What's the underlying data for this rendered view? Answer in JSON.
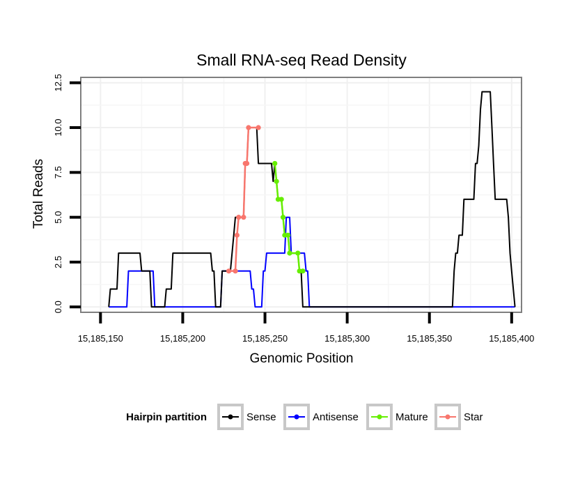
{
  "chart_data": {
    "type": "line",
    "title": "Small RNA-seq Read Density",
    "xlabel": "Genomic Position",
    "ylabel": "Total Reads",
    "xlim": [
      15185138,
      15185406
    ],
    "ylim": [
      -0.3,
      12.8
    ],
    "x_ticks": [
      15185150,
      15185200,
      15185250,
      15185300,
      15185350,
      15185400
    ],
    "x_tick_labels": [
      "15,185,150",
      "15,185,200",
      "15,185,250",
      "15,185,300",
      "15,185,350",
      "15,185,400"
    ],
    "y_ticks": [
      0,
      2.5,
      5,
      7.5,
      10,
      12.5
    ],
    "y_tick_labels": [
      "0.0",
      "2.5",
      "5.0",
      "7.5",
      "10.0",
      "12.5"
    ],
    "grid": true,
    "legend": {
      "title": "Hairpin partition",
      "position": "bottom",
      "entries": [
        "Sense",
        "Antisense",
        "Mature",
        "Star"
      ]
    },
    "colors": {
      "Sense": "#000000",
      "Antisense": "#0000ff",
      "Mature": "#66ee00",
      "Star": "#f8766d"
    },
    "series": [
      {
        "name": "Sense",
        "points": [
          [
            15185155,
            0
          ],
          [
            15185156,
            1
          ],
          [
            15185160,
            1
          ],
          [
            15185161,
            3
          ],
          [
            15185174,
            3
          ],
          [
            15185175,
            2
          ],
          [
            15185180,
            2
          ],
          [
            15185181,
            0
          ],
          [
            15185189,
            0
          ],
          [
            15185190,
            1
          ],
          [
            15185193,
            1
          ],
          [
            15185194,
            3
          ],
          [
            15185217,
            3
          ],
          [
            15185218,
            2
          ],
          [
            15185219,
            2
          ],
          [
            15185220,
            0
          ],
          [
            15185223,
            0
          ],
          [
            15185224,
            2
          ],
          [
            15185229,
            2
          ],
          [
            15185231,
            4
          ],
          [
            15185232,
            5
          ],
          [
            15185237,
            5
          ],
          [
            15185238,
            8
          ],
          [
            15185239,
            8
          ],
          [
            15185240,
            10
          ],
          [
            15185245,
            10
          ],
          [
            15185246,
            8
          ],
          [
            15185254,
            8
          ],
          [
            15185255,
            7
          ],
          [
            15185256,
            8
          ],
          [
            15185257,
            7
          ],
          [
            15185258,
            6
          ],
          [
            15185260,
            6
          ],
          [
            15185261,
            5
          ],
          [
            15185262,
            4
          ],
          [
            15185264,
            4
          ],
          [
            15185265,
            3
          ],
          [
            15185270,
            3
          ],
          [
            15185271,
            2
          ],
          [
            15185272,
            2
          ],
          [
            15185273,
            0
          ],
          [
            15185364,
            0
          ],
          [
            15185365,
            2
          ],
          [
            15185366,
            3
          ],
          [
            15185367,
            3
          ],
          [
            15185368,
            4
          ],
          [
            15185370,
            4
          ],
          [
            15185371,
            6
          ],
          [
            15185377,
            6
          ],
          [
            15185378,
            8
          ],
          [
            15185379,
            8
          ],
          [
            15185380,
            9
          ],
          [
            15185381,
            11
          ],
          [
            15185382,
            12
          ],
          [
            15185387,
            12
          ],
          [
            15185388,
            10
          ],
          [
            15185389,
            8
          ],
          [
            15185390,
            6
          ],
          [
            15185397,
            6
          ],
          [
            15185398,
            5
          ],
          [
            15185399,
            3
          ],
          [
            15185400,
            2
          ],
          [
            15185402,
            0
          ]
        ]
      },
      {
        "name": "Antisense",
        "points": [
          [
            15185155,
            0
          ],
          [
            15185166,
            0
          ],
          [
            15185167,
            2
          ],
          [
            15185182,
            2
          ],
          [
            15185183,
            0
          ],
          [
            15185223,
            0
          ],
          [
            15185224,
            2
          ],
          [
            15185241,
            2
          ],
          [
            15185242,
            1
          ],
          [
            15185243,
            1
          ],
          [
            15185244,
            0
          ],
          [
            15185248,
            0
          ],
          [
            15185249,
            2
          ],
          [
            15185250,
            2
          ],
          [
            15185251,
            3
          ],
          [
            15185262,
            3
          ],
          [
            15185263,
            5
          ],
          [
            15185265,
            5
          ],
          [
            15185266,
            3
          ],
          [
            15185274,
            3
          ],
          [
            15185275,
            2
          ],
          [
            15185276,
            2
          ],
          [
            15185277,
            0
          ],
          [
            15185402,
            0
          ]
        ]
      },
      {
        "name": "Mature",
        "points": [
          [
            15185256,
            8
          ],
          [
            15185257,
            7
          ],
          [
            15185258,
            6
          ],
          [
            15185260,
            6
          ],
          [
            15185261,
            5
          ],
          [
            15185262,
            4
          ],
          [
            15185264,
            4
          ],
          [
            15185265,
            3
          ],
          [
            15185270,
            3
          ],
          [
            15185271,
            2
          ],
          [
            15185273,
            2
          ]
        ]
      },
      {
        "name": "Star",
        "points": [
          [
            15185228,
            2
          ],
          [
            15185232,
            2
          ],
          [
            15185233,
            4
          ],
          [
            15185234,
            5
          ],
          [
            15185237,
            5
          ],
          [
            15185238,
            8
          ],
          [
            15185239,
            8
          ],
          [
            15185240,
            10
          ],
          [
            15185246,
            10
          ]
        ]
      }
    ]
  }
}
